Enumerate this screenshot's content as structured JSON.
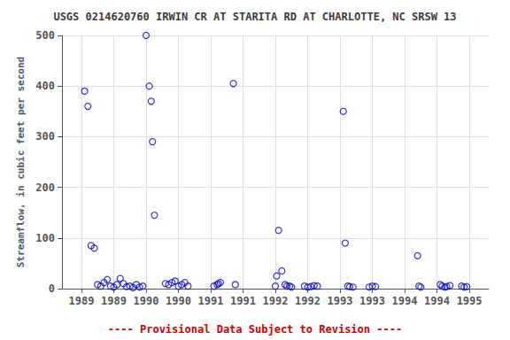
{
  "chart_data": {
    "type": "scatter",
    "title": "USGS 0214620760 IRWIN CR AT STARITA RD AT CHARLOTTE, NC SRSW 13",
    "ylabel": "Streamflow, in cubic feet per second",
    "annotations": [
      {
        "text": "---- Provisional Data Subject to Revision ----",
        "color": "#cc0000"
      }
    ],
    "x": [
      1989.05,
      1989.1,
      1989.15,
      1989.2,
      1989.25,
      1989.3,
      1989.35,
      1989.4,
      1989.45,
      1989.5,
      1989.55,
      1989.6,
      1989.65,
      1989.7,
      1989.75,
      1989.8,
      1989.85,
      1989.9,
      1989.95,
      1990.0,
      1990.05,
      1990.08,
      1990.1,
      1990.13,
      1990.3,
      1990.35,
      1990.4,
      1990.45,
      1990.5,
      1990.55,
      1990.6,
      1990.65,
      1991.05,
      1991.1,
      1991.12,
      1991.15,
      1991.35,
      1991.38,
      1992.0,
      1992.02,
      1992.05,
      1992.1,
      1992.15,
      1992.18,
      1992.22,
      1992.25,
      1992.45,
      1992.5,
      1992.55,
      1992.6,
      1992.65,
      1993.05,
      1993.08,
      1993.12,
      1993.15,
      1993.2,
      1993.45,
      1993.5,
      1993.55,
      1994.2,
      1994.22,
      1994.25,
      1994.55,
      1994.58,
      1994.62,
      1994.65,
      1994.7,
      1994.88,
      1994.92,
      1994.96
    ],
    "values": [
      390,
      360,
      85,
      80,
      8,
      5,
      12,
      18,
      5,
      3,
      8,
      20,
      10,
      4,
      5,
      2,
      8,
      3,
      5,
      500,
      400,
      370,
      290,
      145,
      10,
      8,
      12,
      15,
      5,
      8,
      12,
      5,
      5,
      8,
      10,
      12,
      405,
      8,
      5,
      25,
      115,
      35,
      8,
      5,
      5,
      3,
      5,
      3,
      4,
      6,
      5,
      350,
      90,
      5,
      4,
      3,
      3,
      5,
      4,
      65,
      5,
      3,
      8,
      5,
      3,
      4,
      6,
      5,
      3,
      4
    ],
    "color": "#0000cc",
    "marker": "open-circle",
    "xlim": [
      1988.7,
      1995.3
    ],
    "xticks": [
      1989,
      {
        "value": 1989.5,
        "label": "1989"
      },
      1990,
      {
        "value": 1990.5,
        "label": "1990"
      },
      1991,
      {
        "value": 1991.5,
        "label": "1991"
      },
      1992,
      {
        "value": 1992.5,
        "label": "1992"
      },
      1993,
      {
        "value": 1993.5,
        "label": "1993"
      },
      1994,
      {
        "value": 1994.5,
        "label": "1994"
      },
      1995
    ],
    "ylim": [
      0,
      500
    ],
    "yticks": [
      0,
      100,
      200,
      300,
      400,
      500
    ],
    "grid": true
  }
}
